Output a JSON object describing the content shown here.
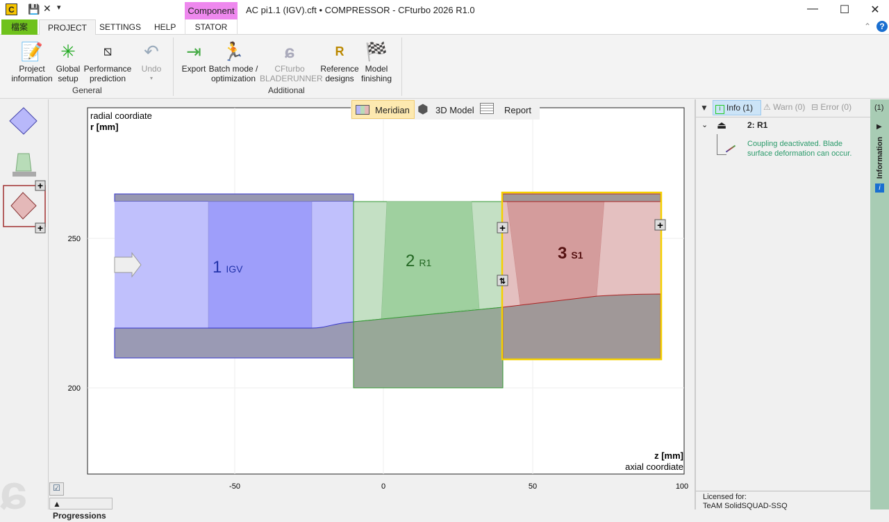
{
  "titlebar": {
    "title": "AC pi1.1 (IGV).cft • COMPRESSOR - CFturbo 2026 R1.0",
    "context_tab": "Component",
    "minimize": "—",
    "maximize": "☐",
    "close": "✕"
  },
  "tabs": [
    {
      "label": "檔案"
    },
    {
      "label": "PROJECT",
      "active": true
    },
    {
      "label": "SETTINGS"
    },
    {
      "label": "HELP"
    },
    {
      "label": "STATOR"
    }
  ],
  "ribbon": {
    "general": {
      "label": "General",
      "buttons": [
        {
          "l1": "Project",
          "l2": "information",
          "icon": "project-info-icon"
        },
        {
          "l1": "Global",
          "l2": "setup",
          "icon": "global-setup-icon"
        },
        {
          "l1": "Performance",
          "l2": "prediction",
          "icon": "performance-icon"
        },
        {
          "l1": "Undo",
          "l2": "▾",
          "icon": "undo-icon",
          "disabled": true
        }
      ]
    },
    "additional": {
      "label": "Additional",
      "buttons": [
        {
          "l1": "Export",
          "l2": "",
          "icon": "export-icon"
        },
        {
          "l1": "Batch mode /",
          "l2": "optimization",
          "icon": "running-man-icon"
        },
        {
          "l1": "CFturbo",
          "l2": "BLADERUNNER",
          "icon": "cfturbo-logo-icon",
          "disabled": true
        },
        {
          "l1": "Reference",
          "l2": "designs",
          "icon": "reference-icon"
        },
        {
          "l1": "Model",
          "l2": "finishing",
          "icon": "checkered-flag-icon"
        }
      ]
    }
  },
  "view_tabs": [
    {
      "label": "Meridian",
      "active": true
    },
    {
      "label": "3D Model"
    },
    {
      "label": "Report"
    }
  ],
  "plot": {
    "y_title": "radial coordiate",
    "y_unit": "r [mm]",
    "x_unit": "z [mm]",
    "x_title": "axial coordiate",
    "x_ticks": [
      "-50",
      "0",
      "50",
      "100"
    ],
    "y_ticks": [
      "250",
      "200"
    ],
    "components": [
      {
        "num": "1",
        "name": "IGV",
        "color": "#c0c0fc"
      },
      {
        "num": "2",
        "name": "R1",
        "color": "#c4e0c4"
      },
      {
        "num": "3",
        "name": "S1",
        "color": "#e4c0c0",
        "selected": true
      }
    ]
  },
  "messages": {
    "filters": [
      {
        "label": "Info (1)",
        "active": true
      },
      {
        "label": "Warn (0)"
      },
      {
        "label": "Error (0)"
      }
    ],
    "count": "(1)",
    "item_title": "2: R1",
    "item_text": "Coupling deactivated. Blade surface deformation can occur.",
    "side_label": "Information"
  },
  "license": {
    "line1": "Licensed for:",
    "line2": "TeAM SolidSQUAD-SSQ"
  },
  "progressions": "Progressions"
}
